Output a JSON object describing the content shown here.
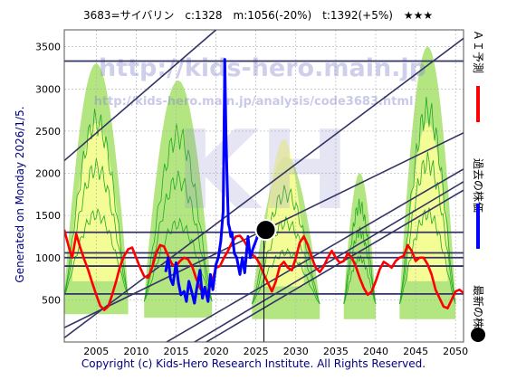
{
  "header": {
    "title": "3683=サイバリン　c:1328　m:1056(-20%)　t:1392(+5%)　★★★"
  },
  "side": {
    "generated": "Generated on Monday 2026/1/5.",
    "legend": [
      {
        "label": "ＡＩ予測",
        "color": "#ff0000",
        "marker": "line"
      },
      {
        "label": "過去の株価",
        "color": "#0000ff",
        "marker": "line"
      },
      {
        "label": "最新の株価",
        "color": "#000000",
        "marker": "dot"
      }
    ]
  },
  "watermark": {
    "big": "KH",
    "url": "http://kids-hero.main.jp",
    "sub_url": "http://kids-hero.main.jp/analysis/code3683.html"
  },
  "footer": {
    "copyright": "Copyright (c) Kids-Hero Research Institute. All Rights Reserved."
  },
  "colors": {
    "band_green": "#99dd55",
    "band_yellow": "#ffff99",
    "band_line": "#22aa22",
    "trend": "#333366",
    "past": "#0000ff",
    "forecast": "#ff0000"
  },
  "chart_data": {
    "type": "line",
    "xlim": [
      2001,
      2051
    ],
    "ylim": [
      0,
      3700
    ],
    "x_ticks": [
      2005,
      2010,
      2015,
      2020,
      2025,
      2030,
      2035,
      2040,
      2045,
      2050
    ],
    "y_ticks": [
      500,
      1000,
      1500,
      2000,
      2500,
      3000,
      3500
    ],
    "grid": true,
    "latest": {
      "x": 2026.0,
      "y": 1328
    },
    "latest_line_x": 2026.0,
    "hlines": [
      3330,
      1300,
      1056,
      1000,
      900,
      570
    ],
    "trend_lines": [
      {
        "x": [
          2001,
          2020
        ],
        "y": [
          2150,
          3700
        ]
      },
      {
        "x": [
          2001,
          2051
        ],
        "y": [
          50,
          3600
        ]
      },
      {
        "x": [
          2012,
          2051
        ],
        "y": [
          -100,
          2050
        ]
      },
      {
        "x": [
          2012,
          2051
        ],
        "y": [
          -300,
          1900
        ]
      },
      {
        "x": [
          2017,
          2051
        ],
        "y": [
          -100,
          1800
        ]
      },
      {
        "x": [
          2001,
          2051
        ],
        "y": [
          170,
          2480
        ]
      }
    ],
    "green_bands": [
      {
        "x0": 2001.0,
        "x1": 2009.0,
        "peak": 3300,
        "floor": 550
      },
      {
        "x0": 2011.0,
        "x1": 2019.5,
        "peak": 3100,
        "floor": 480
      },
      {
        "x0": 2024.5,
        "x1": 2033.0,
        "peak": 2200,
        "floor": 450
      },
      {
        "x0": 2036.0,
        "x1": 2040.0,
        "peak": 2000,
        "floor": 450
      },
      {
        "x0": 2043.0,
        "x1": 2050.0,
        "peak": 3500,
        "floor": 450
      }
    ],
    "yellow_bands": [
      {
        "x0": 2002.0,
        "x1": 2008.0,
        "peak": 2600,
        "floor": 1200
      },
      {
        "x0": 2026.0,
        "x1": 2031.0,
        "peak": 2400,
        "floor": 1100
      },
      {
        "x0": 2044.0,
        "x1": 2049.0,
        "peak": 2600,
        "floor": 1200
      }
    ],
    "series": [
      {
        "kind": "forecast",
        "x": [
          2001.0,
          2001.5,
          2002.0,
          2002.5,
          2003.0,
          2003.5,
          2004.0,
          2004.5,
          2005.0,
          2005.5,
          2006.0,
          2006.5,
          2007.0,
          2007.5,
          2008.0,
          2008.5,
          2009.0,
          2009.5,
          2010.0,
          2010.5,
          2011.0,
          2011.5,
          2012.0,
          2012.5,
          2013.0,
          2013.5,
          2014.0,
          2014.5,
          2015.0,
          2015.5,
          2016.0,
          2016.5,
          2017.0,
          2017.5,
          2018.0,
          2018.5,
          2019.0,
          2019.5,
          2020.0,
          2020.5,
          2021.0,
          2021.5,
          2022.0,
          2022.5,
          2023.0,
          2023.5,
          2024.0,
          2024.5,
          2025.0,
          2025.5,
          2026.0,
          2026.5,
          2027.0,
          2027.5,
          2028.0,
          2028.5,
          2029.0,
          2029.5,
          2030.0,
          2030.5,
          2031.0,
          2031.5,
          2032.0,
          2032.5,
          2033.0,
          2033.5,
          2034.0,
          2034.5,
          2035.0,
          2035.5,
          2036.0,
          2036.5,
          2037.0,
          2037.5,
          2038.0,
          2038.5,
          2039.0,
          2039.5,
          2040.0,
          2040.5,
          2041.0,
          2041.5,
          2042.0,
          2042.5,
          2043.0,
          2043.5,
          2044.0,
          2044.5,
          2045.0,
          2045.5,
          2046.0,
          2046.5,
          2047.0,
          2047.5,
          2048.0,
          2048.5,
          2049.0,
          2049.5,
          2050.0,
          2050.5,
          2051.0
        ],
        "y": [
          1330,
          1150,
          1000,
          1280,
          1120,
          980,
          850,
          700,
          560,
          430,
          380,
          420,
          560,
          720,
          900,
          1020,
          1100,
          1120,
          1000,
          880,
          780,
          760,
          880,
          1050,
          1150,
          1130,
          1020,
          920,
          900,
          960,
          1000,
          980,
          900,
          760,
          640,
          570,
          600,
          720,
          880,
          900,
          1000,
          1080,
          1180,
          1250,
          1260,
          1200,
          1120,
          1040,
          1000,
          920,
          800,
          700,
          600,
          720,
          900,
          950,
          880,
          850,
          1000,
          1180,
          1250,
          1150,
          1000,
          880,
          830,
          900,
          1000,
          1080,
          1000,
          940,
          960,
          1050,
          1000,
          900,
          760,
          640,
          560,
          600,
          720,
          860,
          950,
          920,
          880,
          960,
          1000,
          1020,
          1150,
          1080,
          960,
          1000,
          1000,
          920,
          800,
          620,
          520,
          420,
          400,
          500,
          600,
          620,
          580
        ]
      },
      {
        "kind": "past",
        "x": [
          2013.7,
          2014.0,
          2014.3,
          2014.6,
          2015.0,
          2015.3,
          2015.6,
          2016.0,
          2016.3,
          2016.6,
          2017.0,
          2017.3,
          2017.6,
          2018.0,
          2018.3,
          2018.6,
          2019.0,
          2019.3,
          2019.6,
          2020.0,
          2020.3,
          2020.6,
          2020.9,
          2021.1,
          2021.25,
          2021.4,
          2021.55,
          2021.7,
          2021.85,
          2022.0,
          2022.3,
          2022.6,
          2023.0,
          2023.3,
          2023.6,
          2024.0,
          2024.3,
          2024.6,
          2025.0,
          2025.3,
          2025.6,
          2026.0
        ],
        "y": [
          830,
          1000,
          750,
          680,
          940,
          700,
          560,
          600,
          480,
          720,
          580,
          460,
          640,
          850,
          520,
          650,
          480,
          800,
          620,
          920,
          1000,
          1200,
          1550,
          3350,
          2450,
          1900,
          1400,
          1350,
          1250,
          1300,
          1050,
          1000,
          800,
          1000,
          820,
          1250,
          1000,
          1100,
          1200,
          1280,
          1250,
          1328
        ]
      }
    ]
  }
}
